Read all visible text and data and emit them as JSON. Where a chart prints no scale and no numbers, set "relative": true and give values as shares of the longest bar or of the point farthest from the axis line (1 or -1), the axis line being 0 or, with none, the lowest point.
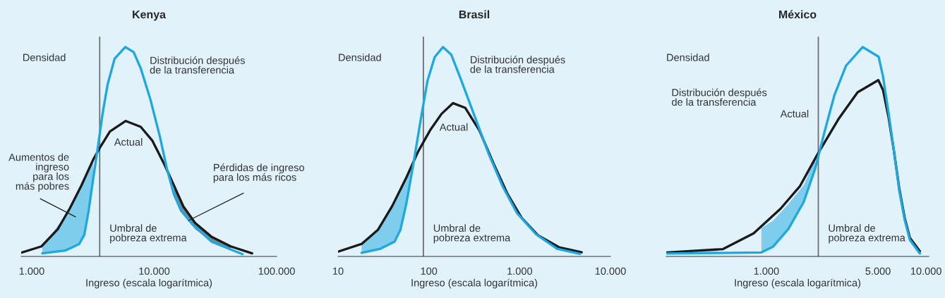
{
  "chart_data": [
    {
      "type": "line",
      "title": "Kenya",
      "xlabel": "Ingreso (escala logarítmica)",
      "relative": true,
      "log": "x",
      "grid": false,
      "legend": false,
      "xlim": [
        820,
        100000
      ],
      "xticks": [
        {
          "value": 1000,
          "label": "1.000"
        },
        {
          "value": 10000,
          "label": "10.000"
        },
        {
          "value": 100000,
          "label": "100.000"
        }
      ],
      "ref_lines": [
        {
          "axis": "x",
          "value": 3590,
          "label": "Umbral de\npobreza extrema",
          "color": "#6d6e70"
        }
      ],
      "annotations": [
        "Densidad",
        "Distribución después\nde la transferencia",
        "Actual",
        "Aumentos de\ningreso\npara los\nmás pobres",
        "Pérdidas de ingreso\npara los más ricos"
      ],
      "series": [
        {
          "color": "#1a1a1a",
          "x": [
            820,
            1200,
            1630,
            2040,
            2550,
            3180,
            3640,
            4350,
            5860,
            7760,
            9680,
            12100,
            14500,
            17300,
            21600,
            29500,
            42200,
            63000
          ],
          "values": [
            0.018,
            0.048,
            0.13,
            0.228,
            0.34,
            0.463,
            0.524,
            0.597,
            0.647,
            0.619,
            0.552,
            0.44,
            0.339,
            0.239,
            0.16,
            0.093,
            0.048,
            0.015
          ],
          "lower": [
            null,
            null,
            null,
            null,
            null,
            null,
            null,
            null,
            null,
            null,
            null,
            null,
            0.296,
            0.2,
            0.13,
            0.07,
            0.03,
            null
          ],
          "upper": [
            null,
            null,
            null,
            null,
            null,
            null,
            null,
            null,
            null,
            null,
            null,
            null,
            0.339,
            0.239,
            0.16,
            0.093,
            0.048,
            null
          ]
        },
        {
          "color": "#1ea8e0",
          "x": [
            1220,
            1870,
            2440,
            2690,
            2910,
            3180,
            3480,
            3800,
            4160,
            4750,
            5800,
            6790,
            7760,
            9270,
            11100,
            12700,
            14500,
            16600,
            20700,
            29500,
            52600
          ],
          "values": [
            0.015,
            0.028,
            0.059,
            0.104,
            0.216,
            0.373,
            0.529,
            0.686,
            0.82,
            0.944,
            1.0,
            0.976,
            0.899,
            0.754,
            0.575,
            0.419,
            0.296,
            0.218,
            0.151,
            0.07,
            0.011
          ],
          "lower": [
            0.015,
            0.028,
            0.059,
            0.104,
            0.216,
            0.373,
            null,
            null,
            null,
            null,
            null,
            null,
            null,
            null,
            null,
            null,
            null,
            null,
            null,
            null,
            null
          ],
          "upper": [
            0.05,
            0.19,
            0.315,
            0.37,
            0.415,
            0.463,
            null,
            null,
            null,
            null,
            null,
            null,
            null,
            null,
            null,
            null,
            null,
            null,
            null,
            null,
            null
          ]
        }
      ]
    },
    {
      "type": "line",
      "title": "Brasil",
      "xlabel": "Ingreso (escala logarítmica)",
      "relative": true,
      "log": "x",
      "grid": false,
      "legend": false,
      "xlim": [
        10,
        10000
      ],
      "xticks": [
        10,
        100,
        {
          "value": 1000,
          "label": "1.000"
        },
        {
          "value": 10000,
          "label": "10.000"
        }
      ],
      "ref_lines": [
        {
          "axis": "x",
          "value": 87,
          "label": "Umbral de\npobreza extrema",
          "color": "#6d6e70"
        }
      ],
      "annotations": [
        "Densidad",
        "Distribución después\nde la transferencia",
        "Actual"
      ],
      "series": [
        {
          "color": "#1a1a1a",
          "x": [
            10,
            18.2,
            27.6,
            39.5,
            56.4,
            76.2,
            103,
            138,
            184,
            251,
            359,
            514,
            736,
            1050,
            1600,
            2740,
            4820
          ],
          "values": [
            0.023,
            0.06,
            0.128,
            0.241,
            0.376,
            0.501,
            0.602,
            0.681,
            0.732,
            0.71,
            0.603,
            0.445,
            0.298,
            0.185,
            0.1,
            0.043,
            0.02
          ]
        },
        {
          "color": "#1ea8e0",
          "x": [
            18.2,
            29.3,
            41.9,
            48.6,
            56.4,
            67.6,
            80.8,
            96.6,
            116,
            143,
            176,
            223,
            319,
            456,
            653,
            934,
            1510,
            2580,
            4620
          ],
          "values": [
            0.017,
            0.037,
            0.071,
            0.127,
            0.251,
            0.443,
            0.646,
            0.839,
            0.952,
            1.0,
            0.964,
            0.851,
            0.67,
            0.49,
            0.332,
            0.207,
            0.106,
            0.037,
            0.012
          ],
          "lower": [
            0.017,
            0.037,
            0.071,
            0.127,
            0.251,
            0.443,
            null,
            null,
            null,
            null,
            null,
            null,
            null,
            null,
            null,
            null,
            null,
            null,
            null
          ],
          "upper": [
            0.06,
            0.14,
            0.26,
            0.32,
            0.376,
            0.45,
            null,
            null,
            null,
            null,
            null,
            null,
            null,
            null,
            null,
            null,
            null,
            null,
            null
          ]
        }
      ]
    },
    {
      "type": "line",
      "title": "México",
      "xlabel": "Ingreso (escala logarítmica)",
      "relative": true,
      "log": "x",
      "grid": false,
      "legend": false,
      "xlim": [
        236,
        10400
      ],
      "xticks": [
        {
          "value": 1000,
          "label": "1.000"
        },
        {
          "value": 5000,
          "label": "5.000"
        },
        {
          "value": 10000,
          "label": "10.000"
        }
      ],
      "ref_lines": [
        {
          "axis": "x",
          "value": 2115,
          "label": "Umbral de\npobreza extrema",
          "color": "#6d6e70"
        }
      ],
      "annotations": [
        "Densidad",
        "Distribución después\nde la transferencia",
        "Actual"
      ],
      "series": [
        {
          "color": "#1a1a1a",
          "x": [
            239,
            535,
            832,
            1227,
            1621,
            2081,
            2824,
            3727,
            5026,
            5380,
            5820,
            6290,
            6800,
            7350,
            7930,
            9140
          ],
          "values": [
            0.019,
            0.035,
            0.11,
            0.228,
            0.335,
            0.485,
            0.655,
            0.784,
            0.842,
            0.794,
            0.666,
            0.505,
            0.323,
            0.184,
            0.088,
            0.025
          ]
        },
        {
          "color": "#1ea8e0",
          "x": [
            239,
            931,
            1099,
            1372,
            1713,
            2023,
            2324,
            2672,
            3155,
            4005,
            5045,
            5380,
            5820,
            6290,
            6800,
            7350,
            7930,
            9140
          ],
          "values": [
            0.014,
            0.019,
            0.046,
            0.131,
            0.26,
            0.42,
            0.601,
            0.772,
            0.911,
            1.0,
            0.954,
            0.858,
            0.687,
            0.505,
            0.313,
            0.174,
            0.078,
            0.014
          ],
          "lower": [
            null,
            0.019,
            0.046,
            0.131,
            0.26,
            0.42,
            null,
            null,
            null,
            null,
            null,
            null,
            null,
            null,
            null,
            null,
            null,
            null
          ],
          "upper": [
            null,
            0.135,
            0.17,
            0.25,
            0.34,
            0.47,
            null,
            null,
            null,
            null,
            null,
            null,
            null,
            null,
            null,
            null,
            null,
            null
          ]
        }
      ]
    }
  ]
}
